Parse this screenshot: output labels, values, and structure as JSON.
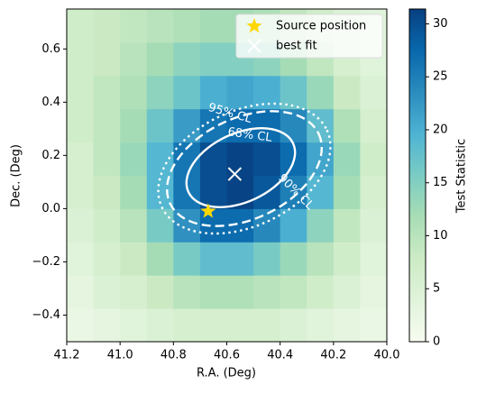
{
  "chart_data": {
    "type": "heatmap",
    "xlabel": "R.A. (Deg)",
    "ylabel": "Dec. (Deg)",
    "colorbar_label": "Test Statistic",
    "xlim": [
      41.2,
      40.0
    ],
    "ylim": [
      -0.5,
      0.75
    ],
    "clim": [
      0,
      31.4
    ],
    "xticks": [
      41.2,
      {
        "value": 41.0,
        "label": "41.0"
      },
      40.8,
      40.6,
      40.4,
      40.2,
      {
        "value": 40.0,
        "label": "40.0"
      }
    ],
    "yticks": [
      {
        "value": -0.4,
        "label": "−0.4"
      },
      {
        "value": -0.2,
        "label": "−0.2"
      },
      {
        "value": 0.0,
        "label": "0.0"
      },
      0.2,
      0.4,
      0.6
    ],
    "cticks": [
      0,
      5,
      10,
      15,
      20,
      25,
      30
    ],
    "colormap": [
      "#f7fcf0",
      "#e0f3db",
      "#ccebc5",
      "#a8ddb5",
      "#7bccc4",
      "#4eb3d3",
      "#2b8cbe",
      "#0868ac",
      "#084081"
    ],
    "x": [
      41.15,
      41.05,
      40.95,
      40.85,
      40.75,
      40.65,
      40.55,
      40.45,
      40.35,
      40.25,
      40.15,
      40.05
    ],
    "y": [
      -0.4375,
      -0.3125,
      -0.1875,
      -0.0625,
      0.0625,
      0.1875,
      0.3125,
      0.4375,
      0.5625,
      0.6875
    ],
    "z": [
      [
        2,
        3,
        4,
        5,
        6,
        6,
        6,
        6,
        5,
        4,
        3,
        2
      ],
      [
        3,
        5,
        6,
        8,
        10,
        11,
        11,
        10,
        9,
        7,
        5,
        3
      ],
      [
        4,
        6,
        8,
        12,
        16,
        18,
        18,
        16,
        13,
        10,
        7,
        4
      ],
      [
        5,
        7,
        10,
        16,
        23,
        27,
        27,
        24,
        20,
        14,
        9,
        5
      ],
      [
        6,
        8,
        12,
        19,
        26,
        30,
        31,
        29,
        25,
        19,
        12,
        6
      ],
      [
        6,
        9,
        13,
        19,
        26,
        30,
        31,
        30,
        27,
        21,
        13,
        7
      ],
      [
        7,
        9,
        12,
        17,
        22,
        26,
        27,
        27,
        24,
        18,
        11,
        6
      ],
      [
        7,
        9,
        11,
        14,
        17,
        20,
        21,
        20,
        17,
        13,
        8,
        5
      ],
      [
        7,
        8,
        10,
        12,
        14,
        15,
        15,
        14,
        12,
        9,
        6,
        4
      ],
      [
        7,
        8,
        9,
        10,
        11,
        12,
        12,
        11,
        9,
        7,
        5,
        4
      ]
    ],
    "points": [
      {
        "name": "Source position",
        "marker": "star",
        "color": "#ffd700",
        "x": 40.67,
        "y": -0.01
      },
      {
        "name": "best fit",
        "marker": "x",
        "color": "#ffffff",
        "x": 40.57,
        "y": 0.13
      }
    ],
    "contour_labels": [
      "95% CL",
      "68% CL",
      "90% CL"
    ]
  }
}
